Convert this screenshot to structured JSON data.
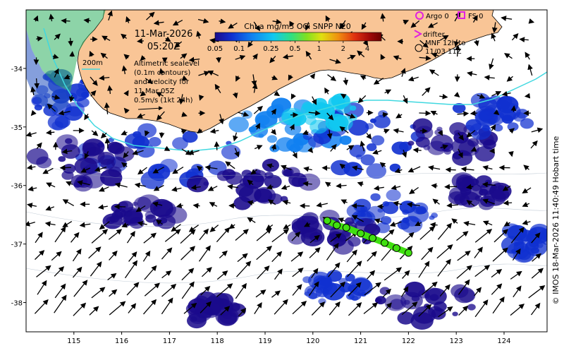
{
  "date": "11-Mar-2026",
  "time": "05:20Z",
  "colorbar": {
    "title": "Chl-a mg/m3 OCi SNPP N20",
    "ticks": [
      "0.05",
      "0.1",
      "0.25",
      "0.5",
      "1",
      "2",
      "4"
    ],
    "tick_values": [
      0.05,
      0.1,
      0.25,
      0.5,
      1,
      2,
      4
    ],
    "range": [
      0.05,
      6
    ],
    "scale": "log",
    "colors": [
      "#1a0a8c",
      "#1030d0",
      "#1080f0",
      "#10c8f0",
      "#30e080",
      "#80e020",
      "#e0e010",
      "#f09010",
      "#e03010",
      "#a00808",
      "#6a0000"
    ]
  },
  "bathy_label": "200m",
  "velocity_caption": [
    "Altimetric sealevel",
    "(0.1m contours)",
    "and velocity for",
    "11 Mar 05Z",
    "0.5m/s (1kt 24h)"
  ],
  "legend": {
    "argo": "Argo 0",
    "fs": "FS 0",
    "drifter": "drifter",
    "mnf": [
      "MNF 12h to",
      "11/03 11Z"
    ]
  },
  "credit": "© IMOS 18-Mar-2026 11:40:49 Hobart time",
  "axes": {
    "lon_ticks": [
      "115",
      "116",
      "117",
      "118",
      "119",
      "120",
      "121",
      "122",
      "123",
      "124"
    ],
    "lat_ticks": [
      "-34",
      "-35",
      "-36",
      "-37",
      "-38"
    ],
    "lon_range": [
      114.0,
      124.9
    ],
    "lat_range": [
      -38.5,
      -33.0
    ]
  },
  "colors": {
    "land": "#f9c596",
    "ocean": "#ffffff",
    "contour_200m": "#40d8e0",
    "argo": "#e020e0",
    "mnf_track": "#40e010"
  },
  "mnf_track": [
    [
      120.3,
      -36.6
    ],
    [
      120.5,
      -36.68
    ],
    [
      120.7,
      -36.72
    ],
    [
      121.0,
      -36.82
    ],
    [
      121.25,
      -36.9
    ],
    [
      121.5,
      -36.98
    ],
    [
      121.75,
      -37.07
    ],
    [
      122.0,
      -37.15
    ]
  ]
}
